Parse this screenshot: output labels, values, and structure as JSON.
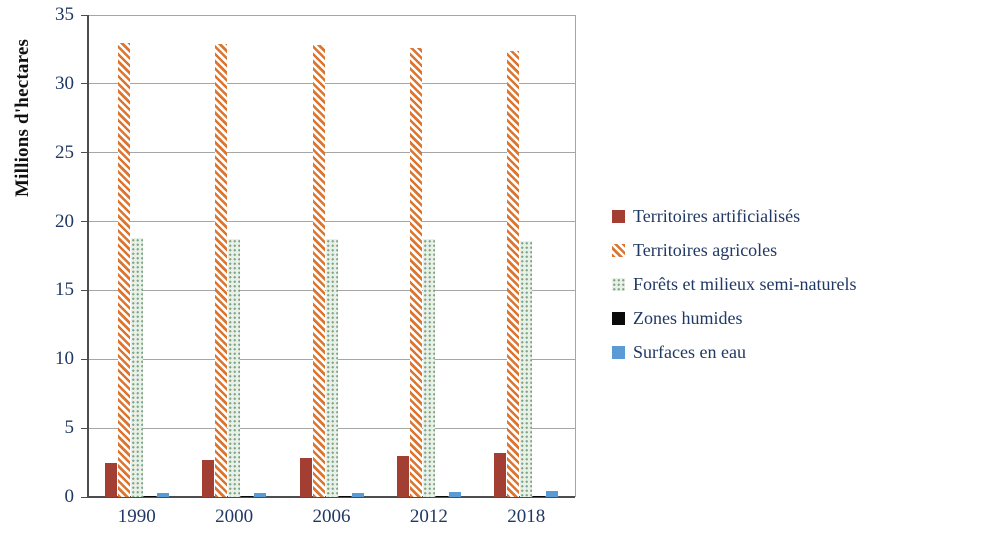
{
  "chart_data": {
    "type": "bar",
    "title": "",
    "xlabel": "",
    "ylabel": "Millions d'hectares",
    "ylim": [
      0,
      35
    ],
    "yticks": [
      0,
      5,
      10,
      15,
      20,
      25,
      30,
      35
    ],
    "grid": "horizontal",
    "legend_position": "right",
    "categories": [
      "1990",
      "2000",
      "2006",
      "2012",
      "2018"
    ],
    "series": [
      {
        "key": "territoires-artificialises",
        "name": "Territoires artificialisés",
        "pattern": "solid",
        "color": "#A33E32",
        "values": [
          2.5,
          2.7,
          2.8,
          3.0,
          3.2
        ]
      },
      {
        "key": "territoires-agricoles",
        "name": "Territoires agricoles",
        "pattern": "diagonal-hatch",
        "color": "#DC7530",
        "values": [
          33.0,
          32.9,
          32.8,
          32.6,
          32.4
        ]
      },
      {
        "key": "forets-et-milieux-semi-naturels",
        "name": "Forêts et milieux semi-naturels",
        "pattern": "dots",
        "color": "#7EA487",
        "bg_color": "#E9F0E8",
        "values": [
          18.8,
          18.7,
          18.7,
          18.7,
          18.6
        ]
      },
      {
        "key": "zones-humides",
        "name": "Zones humides",
        "pattern": "solid",
        "color": "#0A0A0A",
        "values": [
          0.1,
          0.1,
          0.1,
          0.1,
          0.1
        ]
      },
      {
        "key": "surfaces-en-eau",
        "name": "Surfaces en eau",
        "pattern": "solid",
        "color": "#5B9BD5",
        "values": [
          0.3,
          0.3,
          0.3,
          0.35,
          0.4
        ]
      }
    ]
  }
}
